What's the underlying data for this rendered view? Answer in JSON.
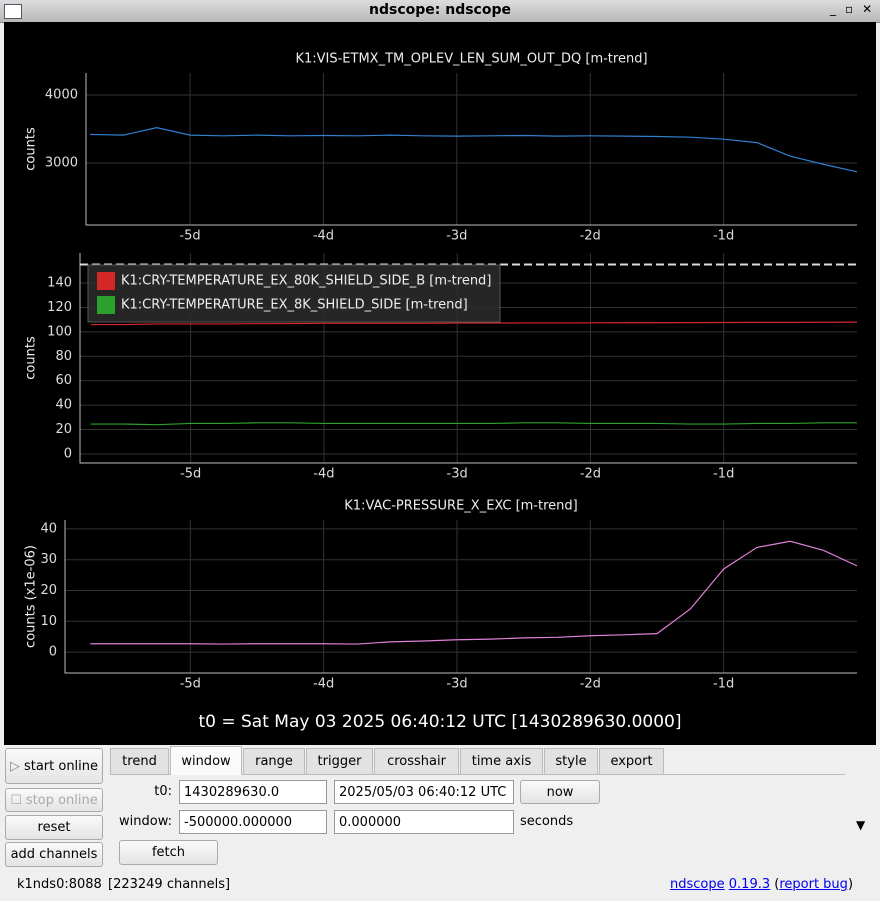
{
  "window": {
    "title": "ndscope: ndscope"
  },
  "plots": [
    {
      "type": "line",
      "title": "K1:VIS-ETMX_TM_OPLEV_LEN_SUM_OUT_DQ [m-trend]",
      "y_label": "counts",
      "x": [
        -5.75,
        -5.5,
        -5.25,
        -5,
        -4.75,
        -4.5,
        -4.25,
        -4,
        -3.75,
        -3.5,
        -3.25,
        -3,
        -2.75,
        -2.5,
        -2.25,
        -2,
        -1.75,
        -1.5,
        -1.25,
        -1,
        -0.75,
        -0.5,
        -0.25,
        0
      ],
      "series": [
        {
          "color": "#2f80d0",
          "values": [
            3420,
            3410,
            3520,
            3410,
            3400,
            3410,
            3400,
            3405,
            3400,
            3410,
            3400,
            3395,
            3400,
            3405,
            3395,
            3400,
            3395,
            3390,
            3380,
            3350,
            3300,
            3100,
            2980,
            2870
          ]
        }
      ],
      "xlim": [
        -5.78,
        0
      ],
      "ylim": [
        2088,
        4324
      ],
      "xticks": [
        {
          "value": -5,
          "label": "-5d"
        },
        {
          "value": -4,
          "label": "-4d"
        },
        {
          "value": -3,
          "label": "-3d"
        },
        {
          "value": -2,
          "label": "-2d"
        },
        {
          "value": -1,
          "label": "-1d"
        }
      ],
      "yticks": [
        3000,
        4000
      ],
      "grid": true
    },
    {
      "type": "line",
      "y_label": "counts",
      "x": [
        -5.75,
        -5.5,
        -5.25,
        -5,
        -4.75,
        -4.5,
        -4.25,
        -4,
        -3.75,
        -3.5,
        -3.25,
        -3,
        -2.75,
        -2.5,
        -2.25,
        -2,
        -1.75,
        -1.5,
        -1.25,
        -1,
        -0.75,
        -0.5,
        -0.25,
        0
      ],
      "series": [
        {
          "name": "K1:CRY-TEMPERATURE_EX_80K_SHIELD_SIDE_B [m-trend]",
          "color": "#d62728",
          "values": [
            106,
            106,
            106.5,
            106.5,
            106.5,
            106.7,
            106.8,
            107,
            107,
            107,
            107,
            107.2,
            107.2,
            107.3,
            107.3,
            107.4,
            107.5,
            107.5,
            107.6,
            107.7,
            107.8,
            107.8,
            107.9,
            108
          ]
        },
        {
          "name": "K1:CRY-TEMPERATURE_EX_8K_SHIELD_SIDE [m-trend]",
          "color": "#2ca02c",
          "values": [
            24.5,
            24.5,
            24,
            25,
            25,
            25.5,
            25.5,
            25,
            25,
            25,
            25,
            25,
            25,
            25.5,
            25.5,
            25,
            25,
            25,
            24.5,
            24.5,
            25,
            25,
            25.5,
            25.5
          ]
        }
      ],
      "y_cursor": 155.202,
      "xlim": [
        -5.83,
        0
      ],
      "ylim": [
        -7.4,
        164.6
      ],
      "xticks": [
        {
          "value": -5,
          "label": "-5d"
        },
        {
          "value": -4,
          "label": "-4d"
        },
        {
          "value": -3,
          "label": "-3d"
        },
        {
          "value": -2,
          "label": "-2d"
        },
        {
          "value": -1,
          "label": "-1d"
        }
      ],
      "yticks": [
        0,
        20,
        40,
        60,
        80,
        100,
        120,
        140
      ],
      "grid": true
    },
    {
      "type": "line",
      "title": "K1:VAC-PRESSURE_X_EXC [m-trend]",
      "y_label": "counts (x1e-06)",
      "x": [
        -5.75,
        -5.5,
        -5.25,
        -5,
        -4.75,
        -4.5,
        -4.25,
        -4,
        -3.75,
        -3.5,
        -3.25,
        -3,
        -2.75,
        -2.5,
        -2.25,
        -2,
        -1.75,
        -1.5,
        -1.25,
        -1,
        -0.75,
        -0.5,
        -0.25,
        0
      ],
      "series": [
        {
          "color": "#e080d8",
          "values": [
            2.7,
            2.7,
            2.7,
            2.7,
            2.6,
            2.7,
            2.7,
            2.7,
            2.6,
            3.3,
            3.6,
            4.0,
            4.2,
            4.6,
            4.8,
            5.3,
            5.6,
            6.0,
            14,
            27,
            34,
            36,
            33,
            28
          ]
        }
      ],
      "xlim": [
        -5.94,
        0
      ],
      "ylim": [
        -6.8,
        42.9
      ],
      "xticks": [
        {
          "value": -5,
          "label": "-5d"
        },
        {
          "value": -4,
          "label": "-4d"
        },
        {
          "value": -3,
          "label": "-3d"
        },
        {
          "value": -2,
          "label": "-2d"
        },
        {
          "value": -1,
          "label": "-1d"
        }
      ],
      "yticks": [
        0,
        10,
        20,
        30,
        40
      ],
      "grid": true
    }
  ],
  "t0_label": "t0 = Sat May 03 2025 06:40:12 UTC [1430289630.0000]",
  "side_buttons": [
    "start online",
    "stop online",
    "reset",
    "add channels"
  ],
  "tabs": [
    "trend",
    "window",
    "range",
    "trigger",
    "crosshair",
    "time axis",
    "style",
    "export"
  ],
  "window_tab": {
    "t0_label": "t0:",
    "t0_gps": "1430289630.0",
    "t0_utc": "2025/05/03 06:40:12 UTC",
    "now_button": "now",
    "window_label": "window:",
    "window_start": "-500000.000000",
    "window_end": "0.000000",
    "units": "seconds",
    "fetch_button": "fetch"
  },
  "status": {
    "server": "k1nds0:8088",
    "channels": "[223249 channels]",
    "app_link": "ndscope",
    "version_link": "0.19.3",
    "open_paren": "(",
    "report_link": "report bug",
    "close_paren": ")"
  }
}
